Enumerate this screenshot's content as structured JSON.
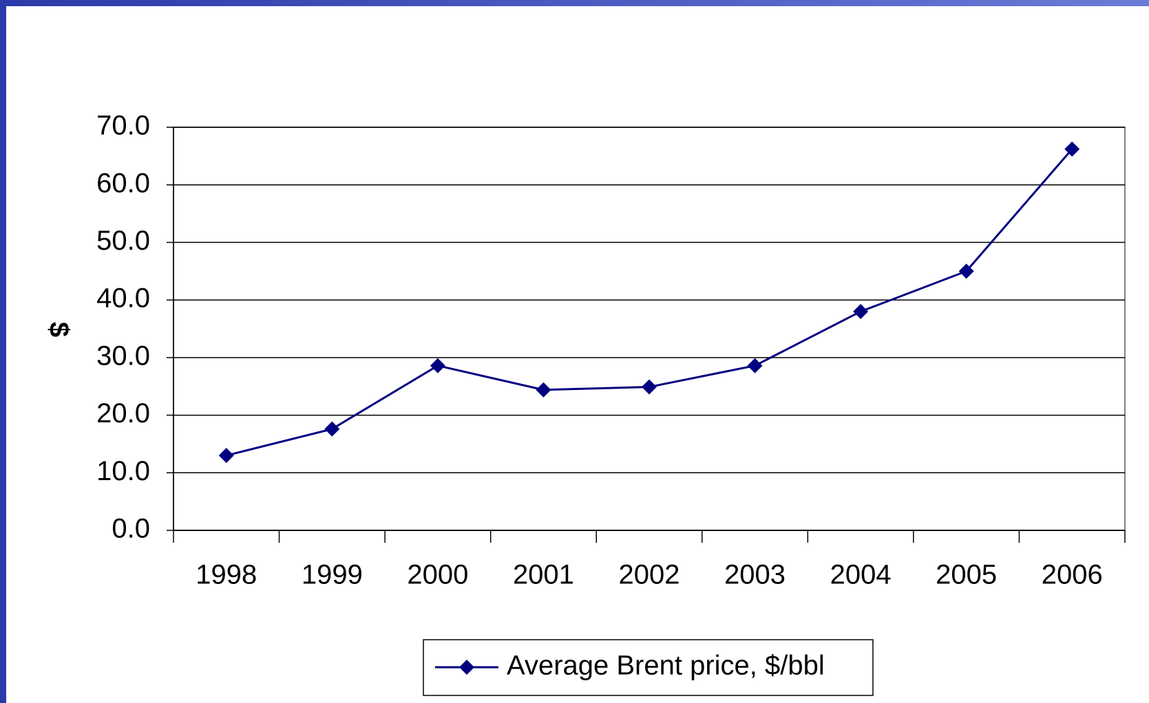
{
  "chart_data": {
    "type": "line",
    "y_label": "$",
    "categories": [
      "1998",
      "1999",
      "2000",
      "2001",
      "2002",
      "2003",
      "2004",
      "2005",
      "2006"
    ],
    "series": [
      {
        "name": "Average Brent price, $/bbl",
        "color": "#000080",
        "values": [
          13.0,
          17.6,
          28.6,
          24.4,
          24.9,
          28.6,
          38.0,
          45.0,
          66.2
        ]
      }
    ],
    "ylim": [
      0,
      70
    ],
    "yticks": [
      {
        "value": 0,
        "label": "0.0"
      },
      {
        "value": 10,
        "label": "10.0"
      },
      {
        "value": 20,
        "label": "20.0"
      },
      {
        "value": 30,
        "label": "30.0"
      },
      {
        "value": 40,
        "label": "40.0"
      },
      {
        "value": 50,
        "label": "50.0"
      },
      {
        "value": 60,
        "label": "60.0"
      },
      {
        "value": 70,
        "label": "70.0"
      }
    ],
    "grid": true,
    "legend": "bottom"
  }
}
